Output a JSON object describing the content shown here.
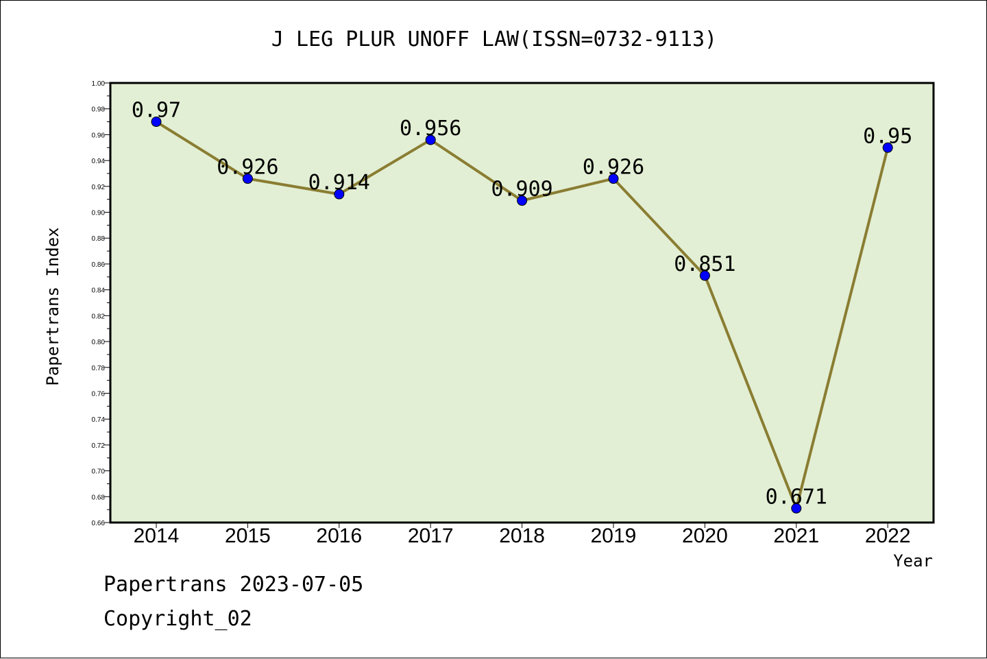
{
  "chart_data": {
    "type": "line",
    "title": "J LEG PLUR UNOFF LAW(ISSN=0732-9113)",
    "xlabel": "Year",
    "ylabel": "Papertrans Index",
    "categories": [
      "2014",
      "2015",
      "2016",
      "2017",
      "2018",
      "2019",
      "2020",
      "2021",
      "2022"
    ],
    "series": [
      {
        "values": [
          0.97,
          0.926,
          0.914,
          0.956,
          0.909,
          0.926,
          0.851,
          0.671,
          0.95
        ],
        "labels": [
          "0.97",
          "0.926",
          "0.914",
          "0.956",
          "0.909",
          "0.926",
          "0.851",
          "0.671",
          "0.95"
        ]
      }
    ],
    "ylim": [
      0.66,
      1.0
    ],
    "yticks": [
      "0.66",
      "0.68",
      "0.70",
      "0.72",
      "0.74",
      "0.76",
      "0.78",
      "0.80",
      "0.82",
      "0.84",
      "0.86",
      "0.88",
      "0.90",
      "0.92",
      "0.94",
      "0.96",
      "0.98",
      "1.00"
    ],
    "grid": false,
    "legend": "none",
    "colors": {
      "plot_background": "#e2efd4",
      "line": "#8a7d32",
      "marker": "#0000ff"
    }
  },
  "footer": {
    "line1": "Papertrans 2023-07-05",
    "line2": "Copyright_02"
  }
}
